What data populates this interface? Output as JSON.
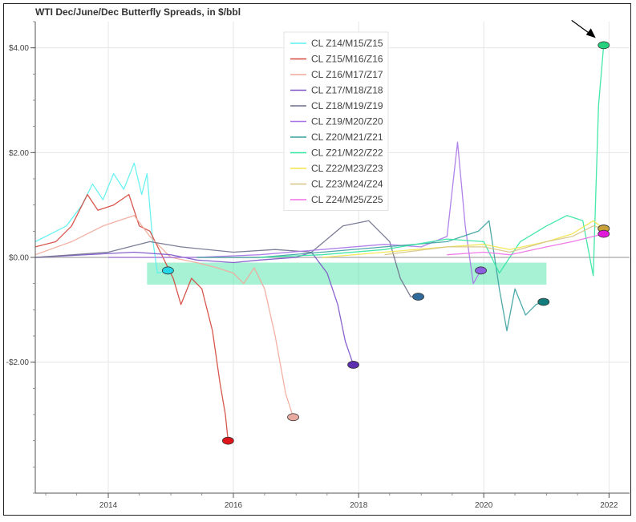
{
  "chart_data": {
    "type": "line",
    "title": "WTI Dec/June/Dec Butterfly Spreads, in $/bbl",
    "xlabel": "",
    "ylabel": "",
    "x_axis": {
      "type": "date",
      "range": [
        "2012-11-01",
        "2022-05-01"
      ],
      "ticks": [
        "2014",
        "2016",
        "2018",
        "2020",
        "2022"
      ]
    },
    "y_axis": {
      "range": [
        -4.5,
        4.5
      ],
      "ticks": [
        -2,
        0,
        2,
        4
      ],
      "tick_labels": [
        "-$2.00",
        "$0.00",
        "$2.00",
        "$4.00"
      ]
    },
    "grid": true,
    "legend_position": "top-center",
    "zero_line": true,
    "highlight_band": {
      "x": [
        "2014-08-15",
        "2021-01-01"
      ],
      "y": [
        -0.52,
        -0.1
      ],
      "color": "#5ee6b0"
    },
    "annotation_arrow": {
      "points_to": "CL Z21/M22/Z22 final value"
    },
    "series": [
      {
        "name": "CL Z14/M15/Z15",
        "color": "#5cf1f1",
        "points": [
          [
            "2012-11-01",
            0.3
          ],
          [
            "2013-02-01",
            0.45
          ],
          [
            "2013-05-01",
            0.6
          ],
          [
            "2013-08-01",
            1.0
          ],
          [
            "2013-10-01",
            1.4
          ],
          [
            "2013-12-01",
            1.1
          ],
          [
            "2014-02-01",
            1.6
          ],
          [
            "2014-04-01",
            1.3
          ],
          [
            "2014-06-01",
            1.8
          ],
          [
            "2014-07-15",
            1.2
          ],
          [
            "2014-08-15",
            1.6
          ],
          [
            "2014-09-15",
            0.4
          ],
          [
            "2014-10-15",
            -0.3
          ],
          [
            "2014-12-15",
            -0.25
          ]
        ],
        "end": [
          "2014-12-15",
          -0.25
        ]
      },
      {
        "name": "CL Z15/M16/Z16",
        "color": "#d4453a",
        "points": [
          [
            "2012-11-01",
            0.2
          ],
          [
            "2013-03-01",
            0.3
          ],
          [
            "2013-06-01",
            0.6
          ],
          [
            "2013-09-01",
            1.2
          ],
          [
            "2013-11-01",
            0.9
          ],
          [
            "2014-02-01",
            1.0
          ],
          [
            "2014-05-01",
            1.2
          ],
          [
            "2014-07-01",
            0.6
          ],
          [
            "2014-09-01",
            0.5
          ],
          [
            "2014-11-01",
            0.1
          ],
          [
            "2015-01-15",
            -0.4
          ],
          [
            "2015-03-01",
            -0.9
          ],
          [
            "2015-05-01",
            -0.4
          ],
          [
            "2015-07-01",
            -0.6
          ],
          [
            "2015-09-01",
            -1.4
          ],
          [
            "2015-10-15",
            -2.4
          ],
          [
            "2015-11-15",
            -3.0
          ],
          [
            "2015-12-01",
            -3.5
          ]
        ],
        "end": [
          "2015-12-01",
          -3.5
        ]
      },
      {
        "name": "CL Z16/M17/Z17",
        "color": "#f2a99a",
        "points": [
          [
            "2012-11-01",
            0.05
          ],
          [
            "2013-06-01",
            0.3
          ],
          [
            "2013-12-01",
            0.6
          ],
          [
            "2014-06-01",
            0.8
          ],
          [
            "2014-09-01",
            0.4
          ],
          [
            "2015-01-01",
            0.0
          ],
          [
            "2015-06-01",
            -0.1
          ],
          [
            "2015-10-01",
            -0.2
          ],
          [
            "2016-01-01",
            -0.3
          ],
          [
            "2016-03-01",
            -0.5
          ],
          [
            "2016-05-01",
            -0.2
          ],
          [
            "2016-07-01",
            -0.6
          ],
          [
            "2016-09-01",
            -1.5
          ],
          [
            "2016-11-01",
            -2.6
          ],
          [
            "2016-12-15",
            -3.05
          ]
        ],
        "end": [
          "2016-12-15",
          -3.05
        ]
      },
      {
        "name": "CL Z17/M18/Z18",
        "color": "#7b52c8",
        "points": [
          [
            "2012-11-01",
            0.0
          ],
          [
            "2014-06-01",
            0.1
          ],
          [
            "2015-01-01",
            0.05
          ],
          [
            "2015-06-01",
            -0.05
          ],
          [
            "2016-01-01",
            -0.1
          ],
          [
            "2016-06-01",
            -0.05
          ],
          [
            "2017-01-01",
            0.0
          ],
          [
            "2017-04-01",
            0.1
          ],
          [
            "2017-07-01",
            -0.3
          ],
          [
            "2017-09-01",
            -0.9
          ],
          [
            "2017-10-15",
            -1.6
          ],
          [
            "2017-12-01",
            -2.05
          ]
        ],
        "end": [
          "2017-12-01",
          -2.05
        ]
      },
      {
        "name": "CL Z18/M19/Z19",
        "color": "#6e6f8c",
        "points": [
          [
            "2012-11-01",
            0.0
          ],
          [
            "2014-01-01",
            0.1
          ],
          [
            "2014-09-01",
            0.3
          ],
          [
            "2015-03-01",
            0.2
          ],
          [
            "2016-01-01",
            0.1
          ],
          [
            "2016-09-01",
            0.15
          ],
          [
            "2017-04-01",
            0.1
          ],
          [
            "2017-10-01",
            0.6
          ],
          [
            "2018-03-01",
            0.7
          ],
          [
            "2018-07-01",
            0.3
          ],
          [
            "2018-09-01",
            -0.4
          ],
          [
            "2018-11-01",
            -0.75
          ],
          [
            "2018-12-15",
            -0.75
          ]
        ],
        "end": [
          "2018-12-15",
          -0.75
        ]
      },
      {
        "name": "CL Z19/M20/Z20",
        "color": "#a874e8",
        "points": [
          [
            "2014-01-01",
            0.0
          ],
          [
            "2015-06-01",
            0.0
          ],
          [
            "2016-06-01",
            0.05
          ],
          [
            "2017-06-01",
            0.15
          ],
          [
            "2018-06-01",
            0.25
          ],
          [
            "2019-01-01",
            0.2
          ],
          [
            "2019-06-01",
            0.4
          ],
          [
            "2019-08-01",
            2.2
          ],
          [
            "2019-09-15",
            0.6
          ],
          [
            "2019-11-01",
            -0.5
          ],
          [
            "2019-12-15",
            -0.25
          ]
        ],
        "end": [
          "2019-12-15",
          -0.25
        ]
      },
      {
        "name": "CL Z20/M21/Z21",
        "color": "#3aa0a0",
        "points": [
          [
            "2015-06-01",
            0.0
          ],
          [
            "2016-06-01",
            0.0
          ],
          [
            "2017-06-01",
            0.1
          ],
          [
            "2018-06-01",
            0.2
          ],
          [
            "2019-06-01",
            0.3
          ],
          [
            "2019-12-01",
            0.5
          ],
          [
            "2020-02-01",
            0.7
          ],
          [
            "2020-04-01",
            -0.6
          ],
          [
            "2020-05-15",
            -1.4
          ],
          [
            "2020-07-01",
            -0.6
          ],
          [
            "2020-09-01",
            -1.1
          ],
          [
            "2020-11-01",
            -0.9
          ],
          [
            "2020-12-15",
            -0.85
          ]
        ],
        "end": [
          "2020-12-15",
          -0.85
        ]
      },
      {
        "name": "CL Z21/M22/Z22",
        "color": "#30e5a0",
        "points": [
          [
            "2016-06-01",
            0.0
          ],
          [
            "2017-06-01",
            0.05
          ],
          [
            "2018-06-01",
            0.15
          ],
          [
            "2019-06-01",
            0.35
          ],
          [
            "2020-01-01",
            0.3
          ],
          [
            "2020-04-01",
            -0.3
          ],
          [
            "2020-08-01",
            0.3
          ],
          [
            "2021-01-01",
            0.6
          ],
          [
            "2021-05-01",
            0.8
          ],
          [
            "2021-08-01",
            0.7
          ],
          [
            "2021-10-01",
            -0.35
          ],
          [
            "2021-11-01",
            2.9
          ],
          [
            "2021-12-01",
            4.05
          ]
        ],
        "end": [
          "2021-12-01",
          4.05
        ]
      },
      {
        "name": "CL Z22/M23/Z23",
        "color": "#f2e64a",
        "points": [
          [
            "2017-06-01",
            0.0
          ],
          [
            "2018-06-01",
            0.1
          ],
          [
            "2019-06-01",
            0.2
          ],
          [
            "2020-01-01",
            0.25
          ],
          [
            "2020-06-01",
            0.15
          ],
          [
            "2021-01-01",
            0.3
          ],
          [
            "2021-06-01",
            0.45
          ],
          [
            "2021-10-01",
            0.7
          ],
          [
            "2021-12-01",
            0.55
          ]
        ],
        "end": [
          "2021-12-01",
          0.55
        ]
      },
      {
        "name": "CL Z23/M24/Z24",
        "color": "#d6c386",
        "points": [
          [
            "2018-06-01",
            0.05
          ],
          [
            "2019-06-01",
            0.2
          ],
          [
            "2020-01-01",
            0.2
          ],
          [
            "2020-06-01",
            0.1
          ],
          [
            "2021-01-01",
            0.3
          ],
          [
            "2021-06-01",
            0.4
          ],
          [
            "2021-10-01",
            0.6
          ],
          [
            "2021-12-01",
            0.55
          ]
        ],
        "end": [
          "2021-12-01",
          0.55
        ]
      },
      {
        "name": "CL Z24/M25/Z25",
        "color": "#f06ee6",
        "points": [
          [
            "2019-06-01",
            0.05
          ],
          [
            "2020-01-01",
            0.1
          ],
          [
            "2020-06-01",
            0.05
          ],
          [
            "2021-01-01",
            0.2
          ],
          [
            "2021-06-01",
            0.3
          ],
          [
            "2021-10-01",
            0.4
          ],
          [
            "2021-12-01",
            0.45
          ]
        ],
        "end": [
          "2021-12-01",
          0.45
        ]
      }
    ],
    "marker_colors": [
      "#25d7e6",
      "#e0151b",
      "#e8a9a1",
      "#5b2fb0",
      "#2f6a9a",
      "#8c5ee0",
      "#127b7b",
      "#25d07d",
      "#e8d24a",
      "#c9a03a",
      "#e01ad8"
    ]
  }
}
